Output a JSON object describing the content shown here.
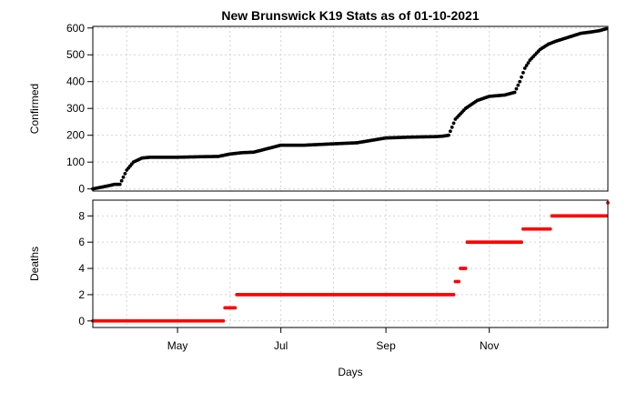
{
  "chart_data": {
    "type": "scatter",
    "title": "New Brunswick K19 Stats as of 01-10-2021",
    "xlabel": "Days",
    "x_ticks": [
      "May",
      "Jul",
      "Sep",
      "Nov"
    ],
    "grid": true,
    "panels": [
      {
        "name": "confirmed",
        "ylabel": "Confirmed",
        "ylim": [
          0,
          600
        ],
        "y_ticks": [
          0,
          100,
          200,
          300,
          400,
          500,
          600
        ],
        "color": "#000000",
        "series": {
          "x": [
            "2020-03-12",
            "2020-03-20",
            "2020-03-25",
            "2020-03-28",
            "2020-04-01",
            "2020-04-05",
            "2020-04-10",
            "2020-04-15",
            "2020-05-01",
            "2020-05-15",
            "2020-05-25",
            "2020-06-01",
            "2020-06-08",
            "2020-06-15",
            "2020-07-01",
            "2020-07-15",
            "2020-08-01",
            "2020-08-15",
            "2020-09-01",
            "2020-09-15",
            "2020-10-01",
            "2020-10-05",
            "2020-10-08",
            "2020-10-12",
            "2020-10-18",
            "2020-10-25",
            "2020-11-01",
            "2020-11-10",
            "2020-11-13",
            "2020-11-16",
            "2020-11-19",
            "2020-11-22",
            "2020-11-25",
            "2020-12-01",
            "2020-12-06",
            "2020-12-10",
            "2020-12-15",
            "2020-12-20",
            "2020-12-25",
            "2020-12-31",
            "2021-01-05",
            "2021-01-09"
          ],
          "y": [
            0,
            10,
            17,
            17,
            70,
            100,
            115,
            118,
            118,
            120,
            121,
            130,
            135,
            137,
            163,
            163,
            168,
            172,
            190,
            193,
            195,
            197,
            200,
            260,
            300,
            330,
            345,
            350,
            355,
            360,
            400,
            450,
            480,
            520,
            540,
            550,
            560,
            570,
            580,
            585,
            590,
            597
          ]
        }
      },
      {
        "name": "deaths",
        "ylabel": "Deaths",
        "ylim": [
          0,
          9
        ],
        "y_ticks": [
          0,
          2,
          4,
          6,
          8
        ],
        "color": "#ff0000",
        "series": {
          "x": [
            "2020-03-12",
            "2020-05-29",
            "2020-06-05",
            "2020-10-12",
            "2020-10-15",
            "2020-10-19",
            "2020-10-20",
            "2020-11-21",
            "2020-12-08",
            "2021-01-10"
          ],
          "y": [
            0,
            1,
            2,
            3,
            4,
            6,
            6,
            7,
            8,
            9
          ]
        }
      }
    ]
  }
}
